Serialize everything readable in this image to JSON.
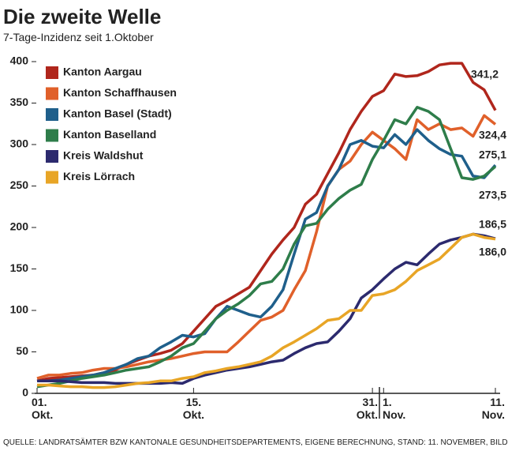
{
  "chart_data": {
    "type": "line",
    "title": "Die zweite Welle",
    "subtitle": "7-Tage-Inzidenz seit 1.Oktober",
    "source": "QUELLE: LANDRATSÄMTER BZW KANTONALE GESUNDHEITSDEPARTEMENTS, EIGENE BERECHNUNG, STAND: 11. NOVEMBER, BILD: DPA / SK-GRAFIK",
    "categories": [
      "01. Okt.",
      null,
      null,
      null,
      null,
      null,
      null,
      null,
      null,
      null,
      null,
      null,
      null,
      null,
      "15. Okt.",
      null,
      null,
      null,
      null,
      null,
      null,
      null,
      null,
      null,
      null,
      null,
      null,
      null,
      null,
      null,
      "31. Okt.",
      "1. Nov.",
      null,
      null,
      null,
      null,
      null,
      null,
      null,
      null,
      null,
      "11. Nov."
    ],
    "ylim": [
      0,
      400
    ],
    "yticks": [
      0,
      50,
      100,
      150,
      200,
      250,
      300,
      350,
      400
    ],
    "legend": "upper left",
    "series": [
      {
        "name": "Kanton Aargau",
        "color": "#b0261c",
        "values": [
          15,
          18,
          19,
          20,
          21,
          22,
          25,
          28,
          35,
          40,
          45,
          48,
          52,
          60,
          75,
          90,
          105,
          112,
          120,
          128,
          148,
          168,
          185,
          200,
          228,
          240,
          265,
          290,
          318,
          340,
          358,
          365,
          385,
          382,
          383,
          388,
          396,
          398,
          398,
          375,
          366,
          341.2
        ],
        "value_labels": [
          null,
          null,
          null,
          null,
          null,
          null,
          null,
          null,
          null,
          null,
          null,
          null,
          null,
          null,
          null,
          null,
          null,
          null,
          null,
          null,
          null,
          null,
          null,
          null,
          null,
          null,
          null,
          null,
          null,
          null,
          null,
          null,
          null,
          null,
          null,
          null,
          null,
          null,
          null,
          null,
          null,
          "341,2"
        ]
      },
      {
        "name": "Kanton Schaffhausen",
        "color": "#e0602a",
        "values": [
          18,
          22,
          22,
          24,
          25,
          28,
          30,
          30,
          32,
          35,
          38,
          40,
          42,
          45,
          48,
          50,
          50,
          50,
          62,
          75,
          88,
          92,
          100,
          125,
          148,
          195,
          250,
          270,
          280,
          300,
          315,
          305,
          295,
          282,
          330,
          318,
          325,
          318,
          320,
          310,
          335,
          324.4
        ],
        "value_labels": [
          null,
          null,
          null,
          null,
          null,
          null,
          null,
          null,
          null,
          null,
          null,
          null,
          null,
          null,
          null,
          null,
          null,
          null,
          null,
          null,
          null,
          null,
          null,
          null,
          null,
          null,
          null,
          null,
          null,
          null,
          null,
          null,
          null,
          null,
          null,
          null,
          null,
          null,
          null,
          null,
          null,
          "324,4"
        ]
      },
      {
        "name": "Kanton Basel (Stadt)",
        "color": "#1f5f8b",
        "values": [
          15,
          15,
          16,
          18,
          20,
          22,
          25,
          30,
          35,
          42,
          45,
          55,
          62,
          70,
          68,
          72,
          90,
          105,
          100,
          95,
          92,
          105,
          125,
          168,
          210,
          218,
          250,
          270,
          300,
          305,
          298,
          296,
          312,
          300,
          318,
          305,
          295,
          288,
          286,
          262,
          260,
          275.1
        ],
        "value_labels": [
          null,
          null,
          null,
          null,
          null,
          null,
          null,
          null,
          null,
          null,
          null,
          null,
          null,
          null,
          null,
          null,
          null,
          null,
          null,
          null,
          null,
          null,
          null,
          null,
          null,
          null,
          null,
          null,
          null,
          null,
          null,
          null,
          null,
          null,
          null,
          null,
          null,
          null,
          null,
          null,
          null,
          "275,1"
        ]
      },
      {
        "name": "Kanton Baselland",
        "color": "#2e7d4a",
        "values": [
          8,
          10,
          12,
          15,
          18,
          20,
          22,
          25,
          28,
          30,
          32,
          38,
          45,
          55,
          60,
          75,
          90,
          100,
          108,
          118,
          132,
          135,
          150,
          180,
          202,
          205,
          222,
          235,
          245,
          252,
          282,
          305,
          330,
          325,
          345,
          340,
          330,
          295,
          260,
          258,
          262,
          273.5
        ],
        "value_labels": [
          null,
          null,
          null,
          null,
          null,
          null,
          null,
          null,
          null,
          null,
          null,
          null,
          null,
          null,
          null,
          null,
          null,
          null,
          null,
          null,
          null,
          null,
          null,
          null,
          null,
          null,
          null,
          null,
          null,
          null,
          null,
          null,
          null,
          null,
          null,
          null,
          null,
          null,
          null,
          null,
          null,
          "273,5"
        ]
      },
      {
        "name": "Kreis Waldshut",
        "color": "#2c2a6e",
        "values": [
          15,
          15,
          15,
          14,
          13,
          13,
          13,
          12,
          12,
          12,
          12,
          12,
          13,
          12,
          18,
          22,
          25,
          28,
          30,
          32,
          35,
          38,
          40,
          48,
          55,
          60,
          62,
          75,
          90,
          115,
          125,
          138,
          150,
          158,
          155,
          168,
          180,
          185,
          188,
          192,
          190,
          186.5
        ],
        "value_labels": [
          null,
          null,
          null,
          null,
          null,
          null,
          null,
          null,
          null,
          null,
          null,
          null,
          null,
          null,
          null,
          null,
          null,
          null,
          null,
          null,
          null,
          null,
          null,
          null,
          null,
          null,
          null,
          null,
          null,
          null,
          null,
          null,
          null,
          null,
          null,
          null,
          null,
          null,
          null,
          null,
          null,
          "186,5"
        ]
      },
      {
        "name": "Kreis Lörrach",
        "color": "#e8a526",
        "values": [
          10,
          10,
          9,
          8,
          8,
          7,
          7,
          8,
          10,
          12,
          13,
          15,
          15,
          18,
          20,
          25,
          27,
          30,
          32,
          35,
          38,
          45,
          55,
          62,
          70,
          78,
          88,
          90,
          100,
          100,
          118,
          120,
          125,
          135,
          148,
          155,
          162,
          175,
          188,
          192,
          188,
          186.0
        ],
        "value_labels": [
          null,
          null,
          null,
          null,
          null,
          null,
          null,
          null,
          null,
          null,
          null,
          null,
          null,
          null,
          null,
          null,
          null,
          null,
          null,
          null,
          null,
          null,
          null,
          null,
          null,
          null,
          null,
          null,
          null,
          null,
          null,
          null,
          null,
          null,
          null,
          null,
          null,
          null,
          null,
          null,
          null,
          "186,0"
        ]
      }
    ]
  }
}
